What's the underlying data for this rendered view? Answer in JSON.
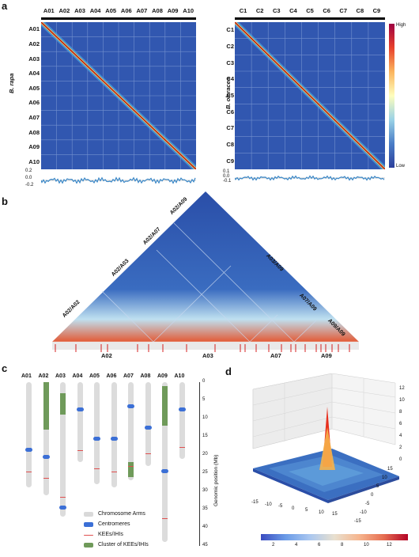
{
  "panels": {
    "a": "a",
    "b": "b",
    "c": "c",
    "d": "d"
  },
  "panel_a": {
    "left": {
      "species": "B. rapa",
      "chromosomes": [
        "A01",
        "A02",
        "A03",
        "A04",
        "A05",
        "A06",
        "A07",
        "A08",
        "A09",
        "A10"
      ],
      "track_ticks": [
        "0.2",
        "0.0",
        "-0.2"
      ]
    },
    "right": {
      "species": "B. oleracea",
      "chromosomes": [
        "C1",
        "C2",
        "C3",
        "C4",
        "C5",
        "C6",
        "C7",
        "C8",
        "C9"
      ],
      "track_ticks": [
        "0.1",
        "0.0",
        "-0.1"
      ],
      "colorbar_high": "High",
      "colorbar_low": "Low"
    }
  },
  "panel_b": {
    "diag_labels": [
      "A02/A02",
      "A02/A03",
      "A02/A07",
      "A02/A09",
      "A03/A09",
      "A07/A09",
      "A09/A09"
    ],
    "bottom_labels": [
      "A02",
      "A03",
      "A07",
      "A09"
    ]
  },
  "panel_c": {
    "chromosomes": [
      "A01",
      "A02",
      "A03",
      "A04",
      "A05",
      "A06",
      "A07",
      "A08",
      "A09",
      "A10"
    ],
    "y_axis_label": "Genomic position (Mb)",
    "y_ticks": [
      "0",
      "5",
      "10",
      "15",
      "20",
      "25",
      "30",
      "35",
      "40",
      "45"
    ],
    "legend": [
      {
        "label": "Chromosome Arms",
        "color": "#d9d9d9"
      },
      {
        "label": "Centromeres",
        "color": "#3b6fd6"
      },
      {
        "label": "KEEs/IHIs",
        "color": "#e05050"
      },
      {
        "label": "Cluster of KEEs/IHIs",
        "color": "#6f9a5a"
      }
    ],
    "chart_data": {
      "type": "table",
      "lengths_mb": [
        29,
        31,
        37,
        22,
        28,
        29,
        27,
        23,
        44,
        21
      ],
      "centromere_mb": [
        18,
        20,
        34,
        7,
        15,
        15,
        6,
        12,
        24,
        7
      ],
      "kee_cluster_mb": [
        null,
        [
          0,
          13
        ],
        [
          3,
          9
        ],
        null,
        null,
        null,
        [
          22,
          26
        ],
        null,
        [
          1,
          12
        ],
        null
      ]
    }
  },
  "panel_d": {
    "x_ticks": [
      "-15",
      "-10",
      "-5",
      "0",
      "5",
      "10",
      "15"
    ],
    "y_ticks": [
      "15",
      "10",
      "5",
      "0",
      "-5",
      "-10",
      "-15"
    ],
    "z_ticks": [
      "0",
      "2",
      "4",
      "6",
      "8",
      "10",
      "12"
    ],
    "colorbar_ticks": [
      "2",
      "4",
      "6",
      "8",
      "10",
      "12"
    ]
  }
}
